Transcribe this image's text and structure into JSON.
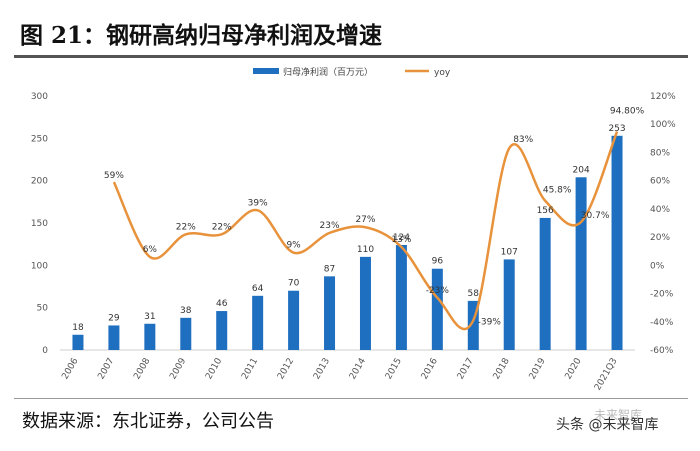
{
  "page": {
    "figure_title": "图 21：钢研高纳归母净利润及增速",
    "source": "数据来源：东北证券，公司公告",
    "watermark": "头条 @未来智库",
    "watermark_logo": "未来智库"
  },
  "colors": {
    "bar": "#1f6fc0",
    "line": "#e8923b",
    "axis_text": "#555555",
    "label_text": "#333333"
  },
  "chart_data": {
    "type": "bar+line",
    "categories": [
      "2006",
      "2007",
      "2008",
      "2009",
      "2010",
      "2011",
      "2012",
      "2013",
      "2014",
      "2015",
      "2016",
      "2017",
      "2018",
      "2019",
      "2020",
      "2021Q3"
    ],
    "series": [
      {
        "name": "归母净利润（百万元）",
        "kind": "bar",
        "axis": "left",
        "values": [
          18,
          29,
          31,
          38,
          46,
          64,
          70,
          87,
          110,
          124,
          96,
          58,
          107,
          156,
          204,
          253
        ],
        "labels": [
          "18",
          "29",
          "31",
          "38",
          "46",
          "64",
          "70",
          "87",
          "110",
          "124",
          "96",
          "58",
          "107",
          "156",
          "204",
          "253"
        ]
      },
      {
        "name": "yoy",
        "kind": "line",
        "axis": "right",
        "values": [
          null,
          59,
          6,
          22,
          22,
          39,
          9,
          23,
          27,
          13,
          -23,
          -39,
          83,
          45.8,
          30.7,
          94.8
        ],
        "labels": [
          "",
          "59%",
          "6%",
          "22%",
          "22%",
          "39%",
          "9%",
          "23%",
          "27%",
          "13%",
          "-23%",
          "-39%",
          "83%",
          "45.8%",
          "30.7%",
          "94.80%"
        ]
      }
    ],
    "y_left": {
      "min": 0,
      "max": 300,
      "ticks": [
        "0",
        "50",
        "100",
        "150",
        "200",
        "250",
        "300"
      ],
      "tick_values": [
        0,
        50,
        100,
        150,
        200,
        250,
        300
      ]
    },
    "y_right": {
      "min": -60,
      "max": 120,
      "ticks": [
        "-60%",
        "-40%",
        "-20%",
        "0%",
        "20%",
        "40%",
        "60%",
        "80%",
        "100%",
        "120%"
      ],
      "tick_values": [
        -60,
        -40,
        -20,
        0,
        20,
        40,
        60,
        80,
        100,
        120
      ]
    },
    "legend": {
      "bar_label": "归母净利润（百万元）",
      "line_label": "yoy",
      "position": "top-center"
    }
  }
}
